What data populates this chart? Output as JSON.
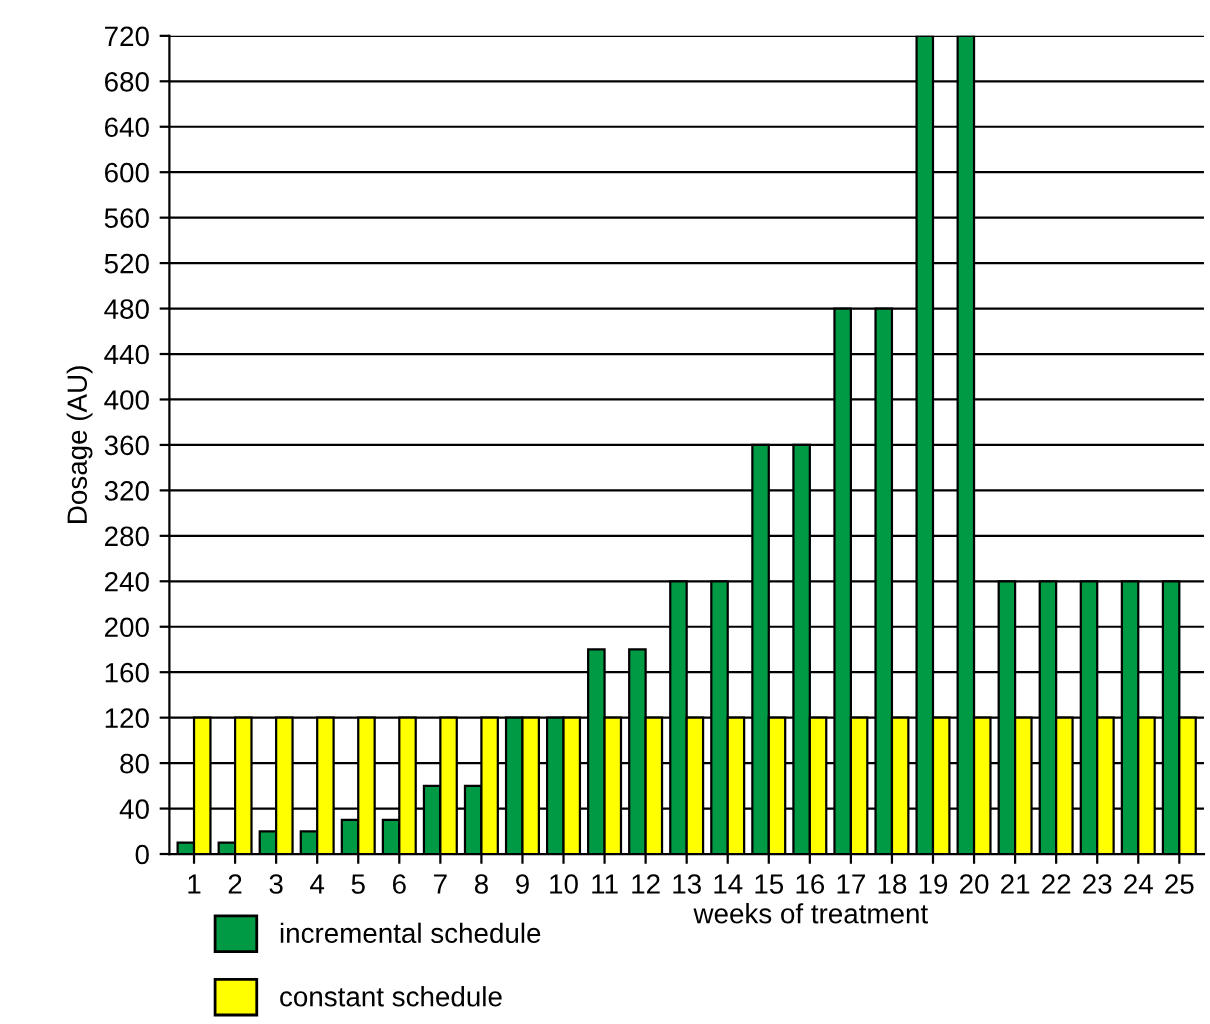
{
  "chart_data": {
    "type": "bar",
    "xlabel": "weeks of treatment",
    "ylabel": "Dosage (AU)",
    "categories": [
      "1",
      "2",
      "3",
      "4",
      "5",
      "6",
      "7",
      "8",
      "9",
      "10",
      "11",
      "12",
      "13",
      "14",
      "15",
      "16",
      "17",
      "18",
      "19",
      "20",
      "21",
      "22",
      "23",
      "24",
      "25"
    ],
    "series": [
      {
        "name": "incremental schedule",
        "color": "#009a44",
        "values": [
          10,
          10,
          20,
          20,
          30,
          30,
          60,
          60,
          120,
          120,
          180,
          180,
          240,
          240,
          360,
          360,
          480,
          480,
          720,
          720,
          240,
          240,
          240,
          240,
          240
        ]
      },
      {
        "name": "constant schedule",
        "color": "#ffff00",
        "values": [
          120,
          120,
          120,
          120,
          120,
          120,
          120,
          120,
          120,
          120,
          120,
          120,
          120,
          120,
          120,
          120,
          120,
          120,
          120,
          120,
          120,
          120,
          120,
          120,
          120
        ]
      }
    ],
    "ylim": [
      0,
      720
    ],
    "yticks": [
      0,
      40,
      80,
      120,
      160,
      200,
      240,
      280,
      320,
      360,
      400,
      440,
      480,
      520,
      560,
      600,
      640,
      680,
      720
    ],
    "grid": "y",
    "legend": "bottom left"
  }
}
